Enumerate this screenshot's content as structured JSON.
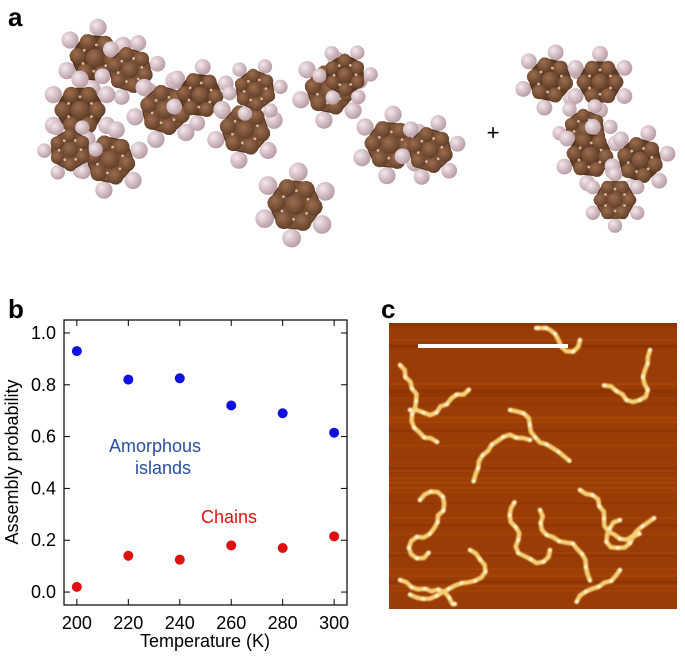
{
  "figure": {
    "panel_a_label": "a",
    "panel_b_label": "b",
    "panel_c_label": "c",
    "plus_sign": "+"
  },
  "chart_data": {
    "type": "scatter",
    "xlabel": "Temperature (K)",
    "ylabel": "Assembly probability",
    "xlim": [
      195,
      305
    ],
    "ylim": [
      -0.05,
      1.05
    ],
    "xticks": [
      200,
      220,
      240,
      260,
      280,
      300
    ],
    "yticks": [
      0.0,
      0.2,
      0.4,
      0.6,
      0.8,
      1.0
    ],
    "xtick_labels": [
      "200",
      "220",
      "240",
      "260",
      "280",
      "300"
    ],
    "ytick_labels": [
      "0.0",
      "0.2",
      "0.4",
      "0.6",
      "0.8",
      "1.0"
    ],
    "series": [
      {
        "name": "Amorphous islands",
        "label_line1": "Amorphous",
        "label_line2": "islands",
        "color": "#1010e0",
        "label_color": "#2a4fa0",
        "x": [
          200,
          220,
          240,
          260,
          280,
          300
        ],
        "y": [
          0.93,
          0.82,
          0.825,
          0.72,
          0.69,
          0.615
        ]
      },
      {
        "name": "Chains",
        "label_line1": "Chains",
        "color": "#e01010",
        "label_color": "#e01010",
        "x": [
          200,
          220,
          240,
          260,
          280,
          300
        ],
        "y": [
          0.02,
          0.14,
          0.125,
          0.18,
          0.17,
          0.215
        ]
      }
    ],
    "grid": false,
    "legend": "none"
  },
  "colors": {
    "carbon": "#7a5238",
    "carbon_dark": "#5e3c26",
    "hydrogen": "#d9c2c6",
    "stm_bg": "#9a3c05",
    "stm_feature": "#f7d27a",
    "scale_bar": "#ffffff"
  }
}
